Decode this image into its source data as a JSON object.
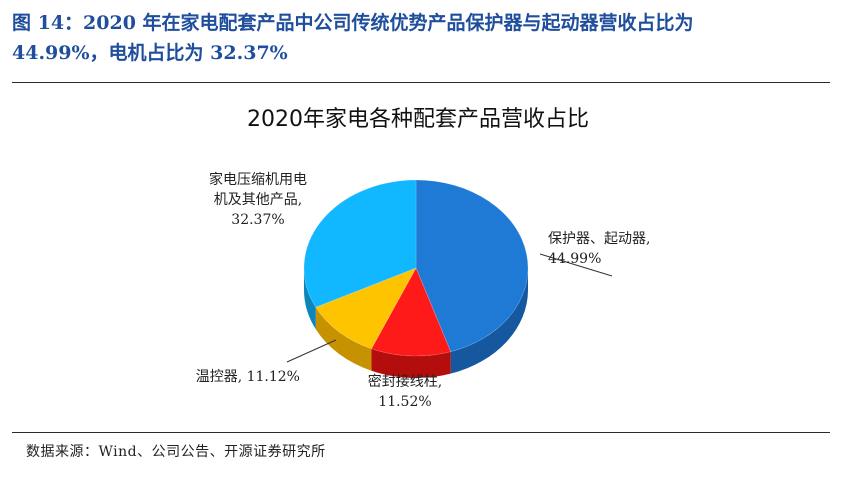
{
  "figure": {
    "caption_line1": "图 14：2020 年在家电配套产品中公司传统优势产品保护器与起动器营收占比为",
    "caption_line2": "44.99%，电机占比为 32.37%",
    "source": "数据来源：Wind、公司公告、开源证券研究所"
  },
  "chart_data": {
    "type": "pie",
    "title": "2020年家电各种配套产品营收占比",
    "slices": [
      {
        "name": "保护器、起动器",
        "value": 44.99,
        "label_lines": [
          "保护器、起动器,",
          "44.99%"
        ],
        "color": "#1f7ad6",
        "side": "#1558a0"
      },
      {
        "name": "密封接线柱",
        "value": 11.52,
        "label_lines": [
          "密封接线柱,",
          "11.52%"
        ],
        "color": "#ff1a1a",
        "side": "#b30d0d"
      },
      {
        "name": "温控器",
        "value": 11.12,
        "label_lines": [
          "温控器, 11.12%"
        ],
        "color": "#ffc400",
        "side": "#c79200"
      },
      {
        "name": "家电压缩机用电机及其他产品",
        "value": 32.37,
        "label_lines": [
          "家电压缩机用电",
          "机及其他产品,",
          "32.37%"
        ],
        "color": "#12b8ff",
        "side": "#0b86ba"
      }
    ]
  }
}
